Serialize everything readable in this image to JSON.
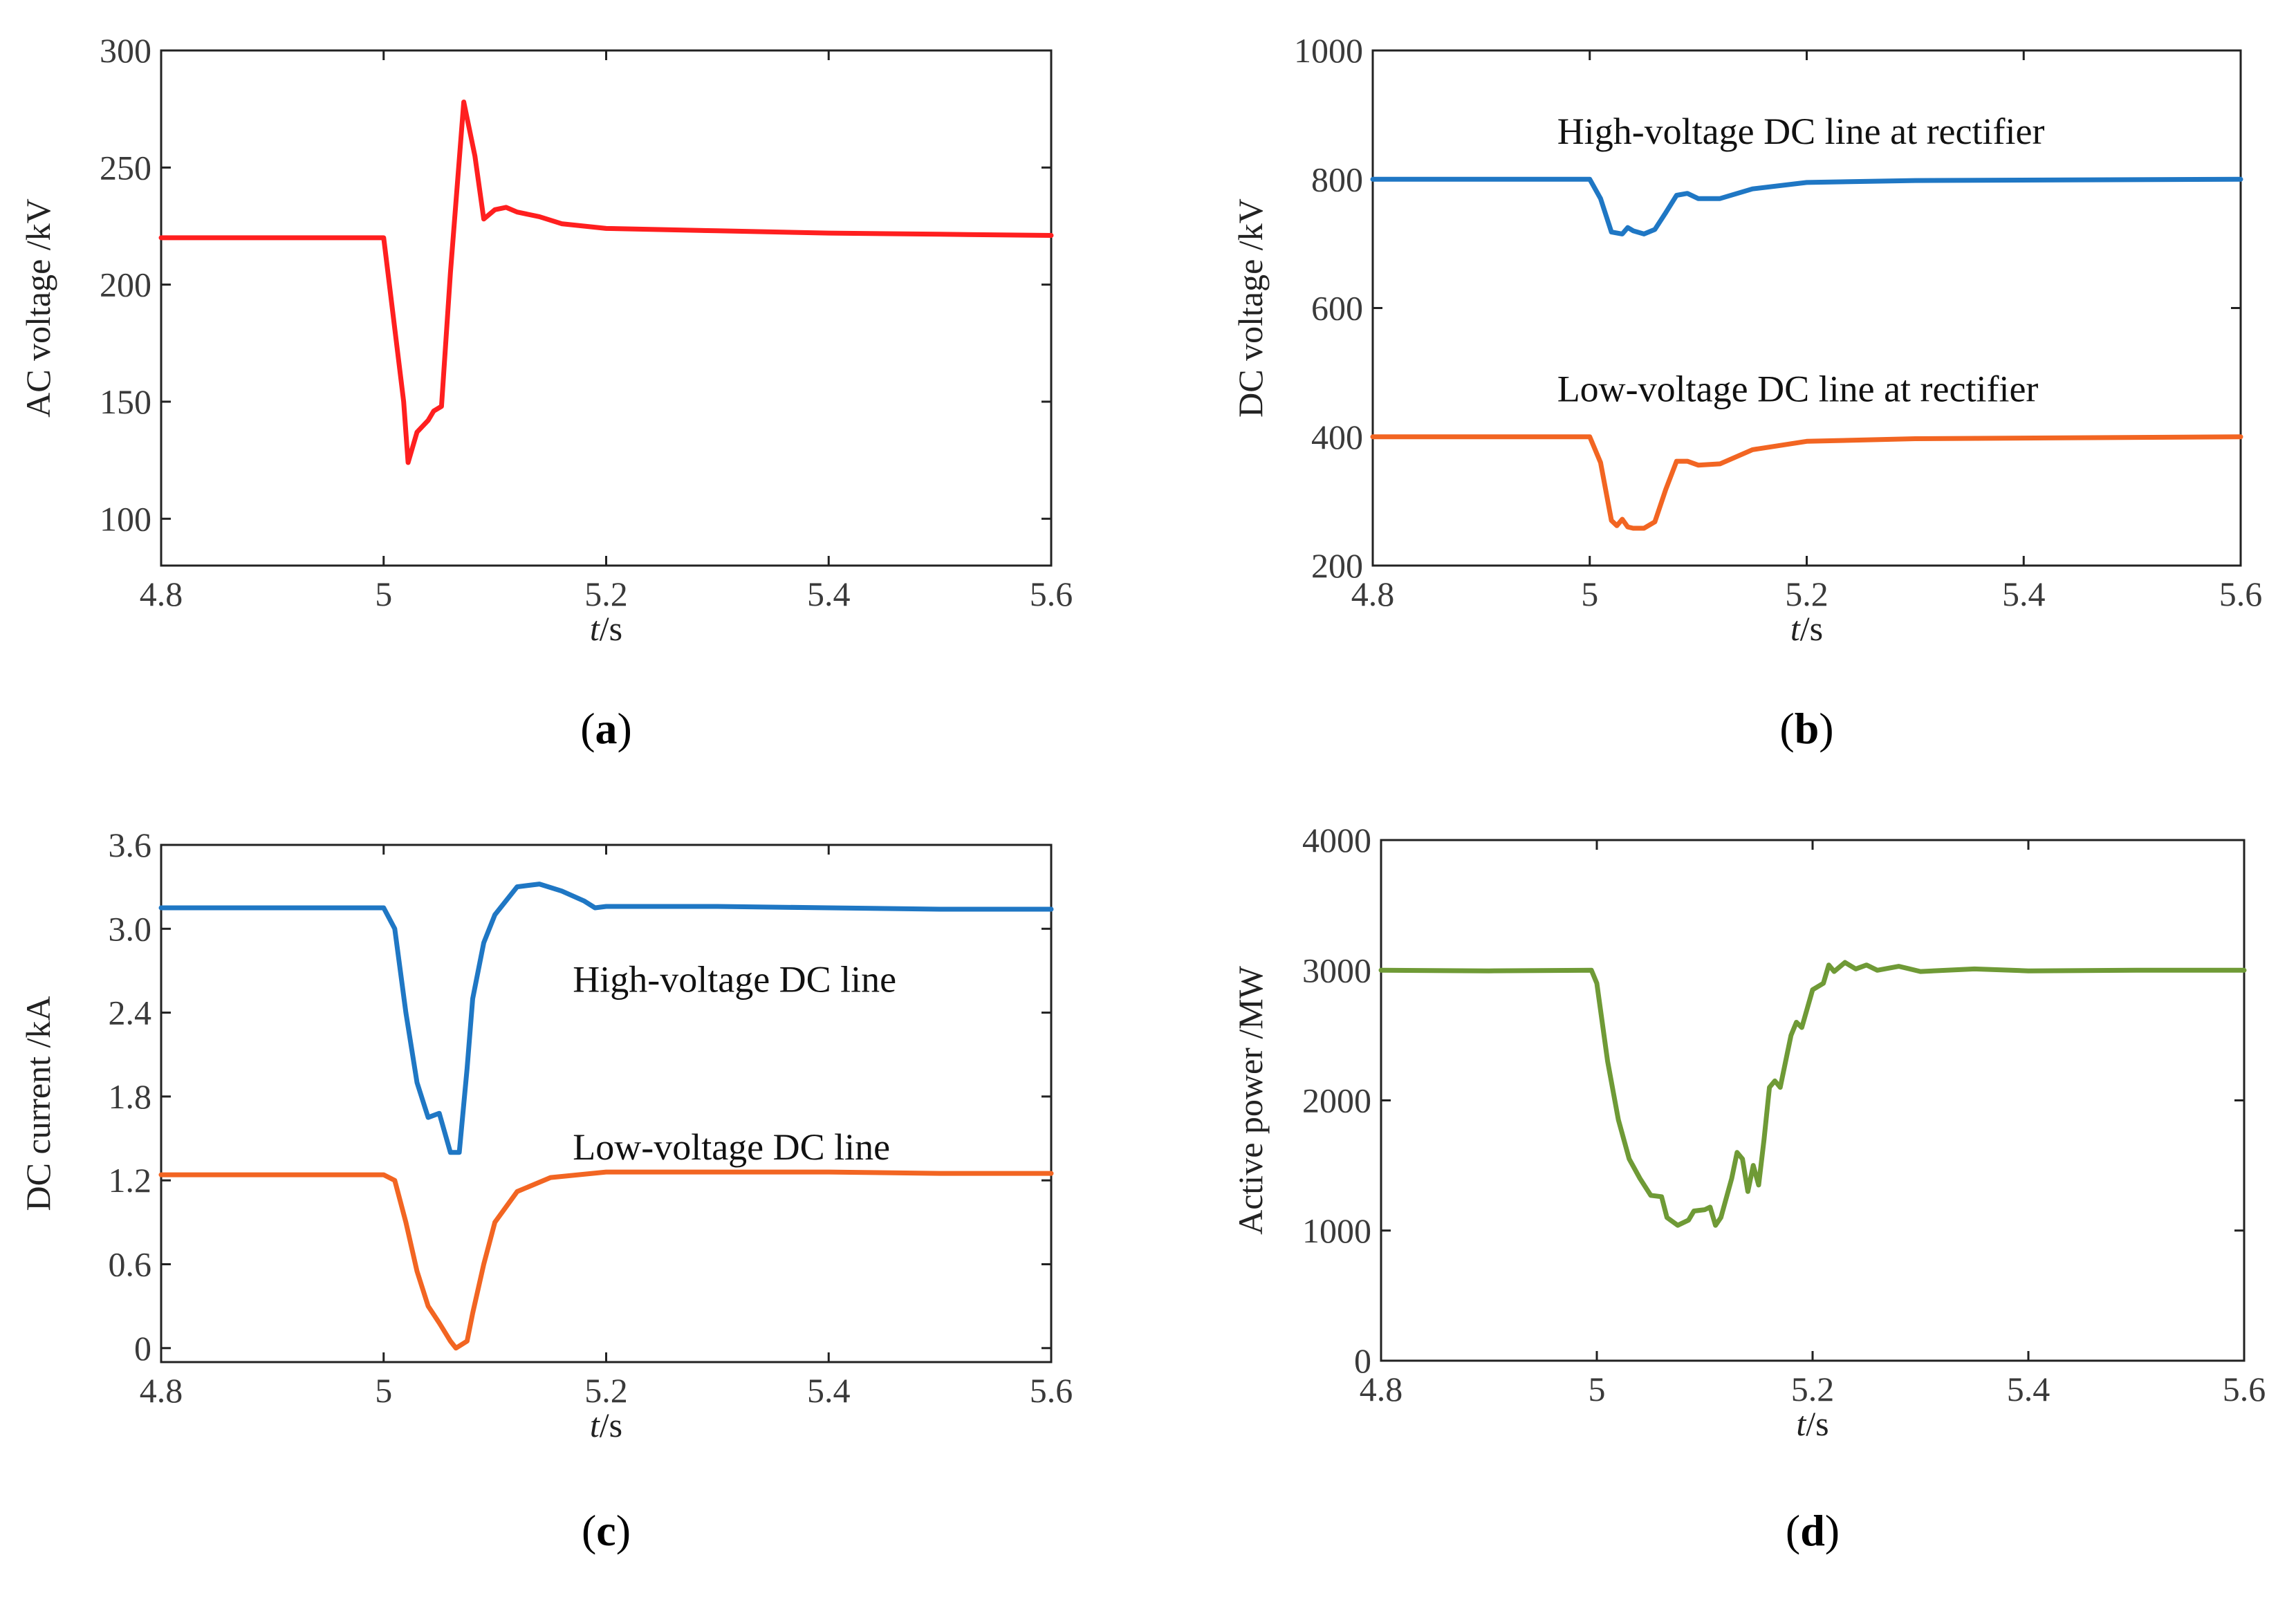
{
  "chart_data": [
    {
      "type": "line",
      "panel": "a",
      "caption": {
        "open": "(",
        "letter": "a",
        "close": ")"
      },
      "xlabel": {
        "italic": "t",
        "rest": "/s"
      },
      "ylabel": "AC voltage /kV",
      "xlim": [
        4.8,
        5.6
      ],
      "ylim": [
        80,
        300
      ],
      "xticks": [
        4.8,
        5.0,
        5.2,
        5.4,
        5.6
      ],
      "xtick_labels": [
        "4.8",
        "5",
        "5.2",
        "5.4",
        "5.6"
      ],
      "yticks": [
        100,
        150,
        200,
        250,
        300
      ],
      "ytick_labels": [
        "100",
        "150",
        "200",
        "250",
        "300"
      ],
      "annotations": [],
      "series": [
        {
          "name": "AC voltage",
          "color": "#ff1f1f",
          "x": [
            4.8,
            5.0,
            5.018,
            5.022,
            5.03,
            5.04,
            5.045,
            5.052,
            5.06,
            5.072,
            5.082,
            5.09,
            5.1,
            5.11,
            5.12,
            5.14,
            5.16,
            5.2,
            5.3,
            5.4,
            5.5,
            5.6
          ],
          "y": [
            220,
            220,
            150,
            124,
            137,
            142,
            146,
            148,
            205,
            278,
            255,
            228,
            232,
            233,
            231,
            229,
            226,
            224,
            223,
            222,
            221.5,
            221
          ]
        }
      ]
    },
    {
      "type": "line",
      "panel": "b",
      "caption": {
        "open": "(",
        "letter": "b",
        "close": ")"
      },
      "xlabel": {
        "italic": "t",
        "rest": "/s"
      },
      "ylabel": "DC voltage /kV",
      "xlim": [
        4.8,
        5.6
      ],
      "ylim": [
        200,
        1000
      ],
      "xticks": [
        4.8,
        5.0,
        5.2,
        5.4,
        5.6
      ],
      "xtick_labels": [
        "4.8",
        "5",
        "5.2",
        "5.4",
        "5.6"
      ],
      "yticks": [
        200,
        400,
        600,
        800,
        1000
      ],
      "ytick_labels": [
        "200",
        "400",
        "600",
        "800",
        "1000"
      ],
      "annotations": [
        {
          "text": "High-voltage DC line at rectifier",
          "x": 4.97,
          "y": 855
        },
        {
          "text": "Low-voltage DC  line at rectifier",
          "x": 4.97,
          "y": 455
        }
      ],
      "series": [
        {
          "name": "High-voltage DC line at rectifier",
          "color": "#1f77c4",
          "x": [
            4.8,
            5.0,
            5.01,
            5.02,
            5.03,
            5.035,
            5.04,
            5.05,
            5.06,
            5.07,
            5.08,
            5.09,
            5.1,
            5.12,
            5.15,
            5.2,
            5.3,
            5.6
          ],
          "y": [
            800,
            800,
            770,
            718,
            715,
            725,
            720,
            715,
            722,
            748,
            775,
            778,
            770,
            770,
            785,
            795,
            798,
            800
          ]
        },
        {
          "name": "Low-voltage DC line at rectifier",
          "color": "#f26522",
          "x": [
            4.8,
            5.0,
            5.01,
            5.02,
            5.025,
            5.03,
            5.035,
            5.04,
            5.05,
            5.06,
            5.07,
            5.08,
            5.09,
            5.1,
            5.12,
            5.15,
            5.2,
            5.3,
            5.6
          ],
          "y": [
            400,
            400,
            360,
            270,
            262,
            272,
            260,
            258,
            258,
            268,
            318,
            362,
            362,
            356,
            358,
            380,
            393,
            397,
            400
          ]
        }
      ]
    },
    {
      "type": "line",
      "panel": "c",
      "caption": {
        "open": "(",
        "letter": "c",
        "close": ")"
      },
      "xlabel": {
        "italic": "t",
        "rest": "/s"
      },
      "ylabel": "DC current /kA",
      "xlim": [
        4.8,
        5.6
      ],
      "ylim": [
        -0.1,
        3.6
      ],
      "xticks": [
        4.8,
        5.0,
        5.2,
        5.4,
        5.6
      ],
      "xtick_labels": [
        "4.8",
        "5",
        "5.2",
        "5.4",
        "5.6"
      ],
      "yticks": [
        0,
        0.6,
        1.2,
        1.8,
        2.4,
        3.0,
        3.6
      ],
      "ytick_labels": [
        "0",
        "0.6",
        "1.2",
        "1.8",
        "2.4",
        "3.0",
        "3.6"
      ],
      "annotations": [
        {
          "text": "High-voltage DC line",
          "x": 5.17,
          "y": 2.55
        },
        {
          "text": "Low-voltage DC line",
          "x": 5.17,
          "y": 1.35
        }
      ],
      "series": [
        {
          "name": "High-voltage DC line",
          "color": "#1f77c4",
          "x": [
            4.8,
            5.0,
            5.01,
            5.02,
            5.03,
            5.04,
            5.05,
            5.06,
            5.068,
            5.075,
            5.08,
            5.09,
            5.1,
            5.12,
            5.14,
            5.16,
            5.18,
            5.19,
            5.2,
            5.3,
            5.4,
            5.5,
            5.6
          ],
          "y": [
            3.15,
            3.15,
            3.0,
            2.4,
            1.9,
            1.65,
            1.68,
            1.4,
            1.4,
            2.0,
            2.5,
            2.9,
            3.1,
            3.3,
            3.32,
            3.27,
            3.2,
            3.15,
            3.16,
            3.16,
            3.15,
            3.14,
            3.14
          ]
        },
        {
          "name": "Low-voltage DC line",
          "color": "#f26522",
          "x": [
            4.8,
            5.0,
            5.01,
            5.02,
            5.03,
            5.04,
            5.05,
            5.06,
            5.065,
            5.075,
            5.08,
            5.09,
            5.1,
            5.12,
            5.15,
            5.2,
            5.3,
            5.4,
            5.5,
            5.6
          ],
          "y": [
            1.24,
            1.24,
            1.2,
            0.9,
            0.55,
            0.3,
            0.18,
            0.05,
            0.0,
            0.05,
            0.25,
            0.6,
            0.9,
            1.12,
            1.22,
            1.26,
            1.26,
            1.26,
            1.25,
            1.25
          ]
        }
      ]
    },
    {
      "type": "line",
      "panel": "d",
      "caption": {
        "open": "(",
        "letter": "d",
        "close": ")"
      },
      "xlabel": {
        "italic": "t",
        "rest": "/s"
      },
      "ylabel": "Active power /MW",
      "xlim": [
        4.8,
        5.6
      ],
      "ylim": [
        0,
        4000
      ],
      "xticks": [
        4.8,
        5.0,
        5.2,
        5.4,
        5.6
      ],
      "xtick_labels": [
        "4.8",
        "5",
        "5.2",
        "5.4",
        "5.6"
      ],
      "yticks": [
        0,
        1000,
        2000,
        3000,
        4000
      ],
      "ytick_labels": [
        "0",
        "1000",
        "2000",
        "3000",
        "4000"
      ],
      "annotations": [],
      "series": [
        {
          "name": "Active power",
          "color": "#6f9a36",
          "x": [
            4.8,
            4.9,
            4.995,
            5.0,
            5.01,
            5.02,
            5.03,
            5.04,
            5.05,
            5.06,
            5.065,
            5.075,
            5.085,
            5.09,
            5.1,
            5.105,
            5.11,
            5.115,
            5.125,
            5.13,
            5.135,
            5.14,
            5.145,
            5.15,
            5.155,
            5.16,
            5.165,
            5.17,
            5.18,
            5.185,
            5.19,
            5.2,
            5.21,
            5.215,
            5.22,
            5.23,
            5.24,
            5.25,
            5.26,
            5.28,
            5.3,
            5.35,
            5.4,
            5.5,
            5.6
          ],
          "y": [
            3000,
            2995,
            3000,
            2900,
            2300,
            1850,
            1550,
            1400,
            1270,
            1260,
            1100,
            1040,
            1080,
            1150,
            1160,
            1180,
            1040,
            1100,
            1400,
            1600,
            1550,
            1300,
            1500,
            1350,
            1700,
            2100,
            2150,
            2100,
            2500,
            2600,
            2560,
            2850,
            2900,
            3040,
            2990,
            3060,
            3010,
            3040,
            3000,
            3030,
            2990,
            3010,
            2995,
            3000,
            3000
          ]
        }
      ]
    }
  ]
}
